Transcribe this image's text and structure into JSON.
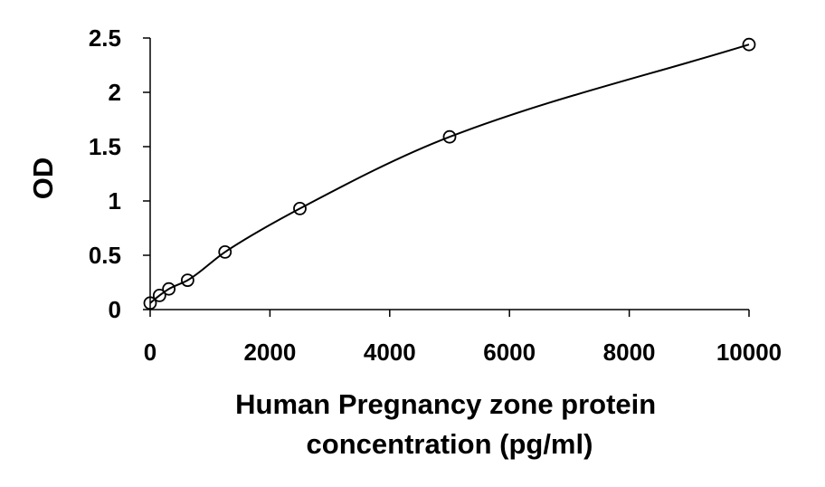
{
  "chart_data": {
    "type": "scatter",
    "xlabel_lines": [
      "Human Pregnancy zone protein",
      "concentration (pg/ml)"
    ],
    "ylabel": "OD",
    "xlim": [
      0,
      10000
    ],
    "ylim": [
      0,
      2.5
    ],
    "x_ticks": [
      0,
      2000,
      4000,
      6000,
      8000,
      10000
    ],
    "x_tick_labels": [
      "0",
      "2000",
      "4000",
      "6000",
      "8000",
      "10000"
    ],
    "y_ticks": [
      0,
      0.5,
      1,
      1.5,
      2,
      2.5
    ],
    "y_tick_labels": [
      "0",
      "0.5",
      "1",
      "1.5",
      "2",
      "2.5"
    ],
    "grid": false,
    "legend": "none",
    "marker": "open-circle",
    "fit": "smooth-curve",
    "series": [
      {
        "x": [
          0,
          156,
          312,
          625,
          1250,
          2500,
          5000,
          10000
        ],
        "y": [
          0.06,
          0.13,
          0.19,
          0.27,
          0.53,
          0.93,
          1.59,
          2.44
        ]
      }
    ],
    "colors": {
      "marks": "#000000",
      "background": "#ffffff"
    }
  }
}
